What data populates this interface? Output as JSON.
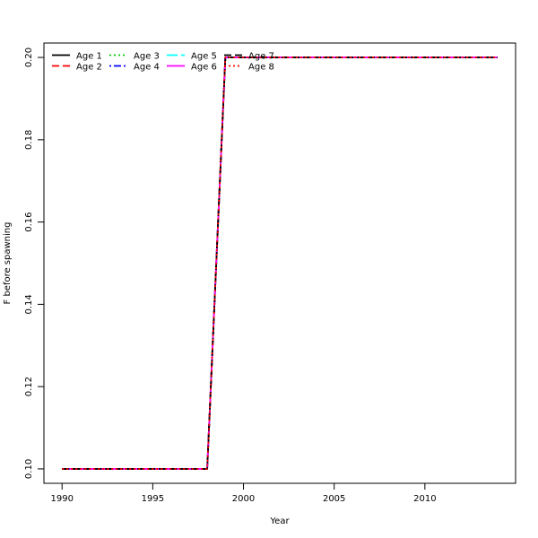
{
  "chart_data": {
    "type": "line",
    "title": "",
    "xlabel": "Year",
    "ylabel": "F before spawning",
    "xlim": [
      1989,
      2015
    ],
    "ylim": [
      0.0965,
      0.2035
    ],
    "x_ticks": [
      1990,
      1995,
      2000,
      2005,
      2010
    ],
    "y_ticks": [
      0.1,
      0.12,
      0.14,
      0.16,
      0.18,
      0.2
    ],
    "y_tick_labels": [
      "0.10",
      "0.12",
      "0.14",
      "0.16",
      "0.18",
      "0.20"
    ],
    "grid": false,
    "legend_position": "top-left",
    "x": [
      1990,
      1991,
      1992,
      1993,
      1994,
      1995,
      1996,
      1997,
      1998,
      1999,
      2000,
      2001,
      2002,
      2003,
      2004,
      2005,
      2006,
      2007,
      2008,
      2009,
      2010,
      2011,
      2012,
      2013,
      2014
    ],
    "series": [
      {
        "name": "Age 1",
        "color": "#000000",
        "dash": "solid",
        "values": [
          0.1,
          0.1,
          0.1,
          0.1,
          0.1,
          0.1,
          0.1,
          0.1,
          0.1,
          0.2,
          0.2,
          0.2,
          0.2,
          0.2,
          0.2,
          0.2,
          0.2,
          0.2,
          0.2,
          0.2,
          0.2,
          0.2,
          0.2,
          0.2,
          0.2
        ]
      },
      {
        "name": "Age 2",
        "color": "#ff0000",
        "dash": "dashed",
        "values": [
          0.1,
          0.1,
          0.1,
          0.1,
          0.1,
          0.1,
          0.1,
          0.1,
          0.1,
          0.2,
          0.2,
          0.2,
          0.2,
          0.2,
          0.2,
          0.2,
          0.2,
          0.2,
          0.2,
          0.2,
          0.2,
          0.2,
          0.2,
          0.2,
          0.2
        ]
      },
      {
        "name": "Age 3",
        "color": "#00cd00",
        "dash": "dotted",
        "values": [
          0.1,
          0.1,
          0.1,
          0.1,
          0.1,
          0.1,
          0.1,
          0.1,
          0.1,
          0.2,
          0.2,
          0.2,
          0.2,
          0.2,
          0.2,
          0.2,
          0.2,
          0.2,
          0.2,
          0.2,
          0.2,
          0.2,
          0.2,
          0.2,
          0.2
        ]
      },
      {
        "name": "Age 4",
        "color": "#0000ff",
        "dash": "dotdash",
        "values": [
          0.1,
          0.1,
          0.1,
          0.1,
          0.1,
          0.1,
          0.1,
          0.1,
          0.1,
          0.2,
          0.2,
          0.2,
          0.2,
          0.2,
          0.2,
          0.2,
          0.2,
          0.2,
          0.2,
          0.2,
          0.2,
          0.2,
          0.2,
          0.2,
          0.2
        ]
      },
      {
        "name": "Age 5",
        "color": "#00ffff",
        "dash": "longdash",
        "values": [
          0.1,
          0.1,
          0.1,
          0.1,
          0.1,
          0.1,
          0.1,
          0.1,
          0.1,
          0.2,
          0.2,
          0.2,
          0.2,
          0.2,
          0.2,
          0.2,
          0.2,
          0.2,
          0.2,
          0.2,
          0.2,
          0.2,
          0.2,
          0.2,
          0.2
        ]
      },
      {
        "name": "Age 6",
        "color": "#ff00ff",
        "dash": "solid",
        "values": [
          0.1,
          0.1,
          0.1,
          0.1,
          0.1,
          0.1,
          0.1,
          0.1,
          0.1,
          0.2,
          0.2,
          0.2,
          0.2,
          0.2,
          0.2,
          0.2,
          0.2,
          0.2,
          0.2,
          0.2,
          0.2,
          0.2,
          0.2,
          0.2,
          0.2
        ]
      },
      {
        "name": "Age 7",
        "color": "#000000",
        "dash": "dashed",
        "values": [
          0.1,
          0.1,
          0.1,
          0.1,
          0.1,
          0.1,
          0.1,
          0.1,
          0.1,
          0.2,
          0.2,
          0.2,
          0.2,
          0.2,
          0.2,
          0.2,
          0.2,
          0.2,
          0.2,
          0.2,
          0.2,
          0.2,
          0.2,
          0.2,
          0.2
        ]
      },
      {
        "name": "Age 8",
        "color": "#ff0000",
        "dash": "dotted",
        "values": [
          0.1,
          0.1,
          0.1,
          0.1,
          0.1,
          0.1,
          0.1,
          0.1,
          0.1,
          0.2,
          0.2,
          0.2,
          0.2,
          0.2,
          0.2,
          0.2,
          0.2,
          0.2,
          0.2,
          0.2,
          0.2,
          0.2,
          0.2,
          0.2,
          0.2
        ]
      }
    ]
  }
}
